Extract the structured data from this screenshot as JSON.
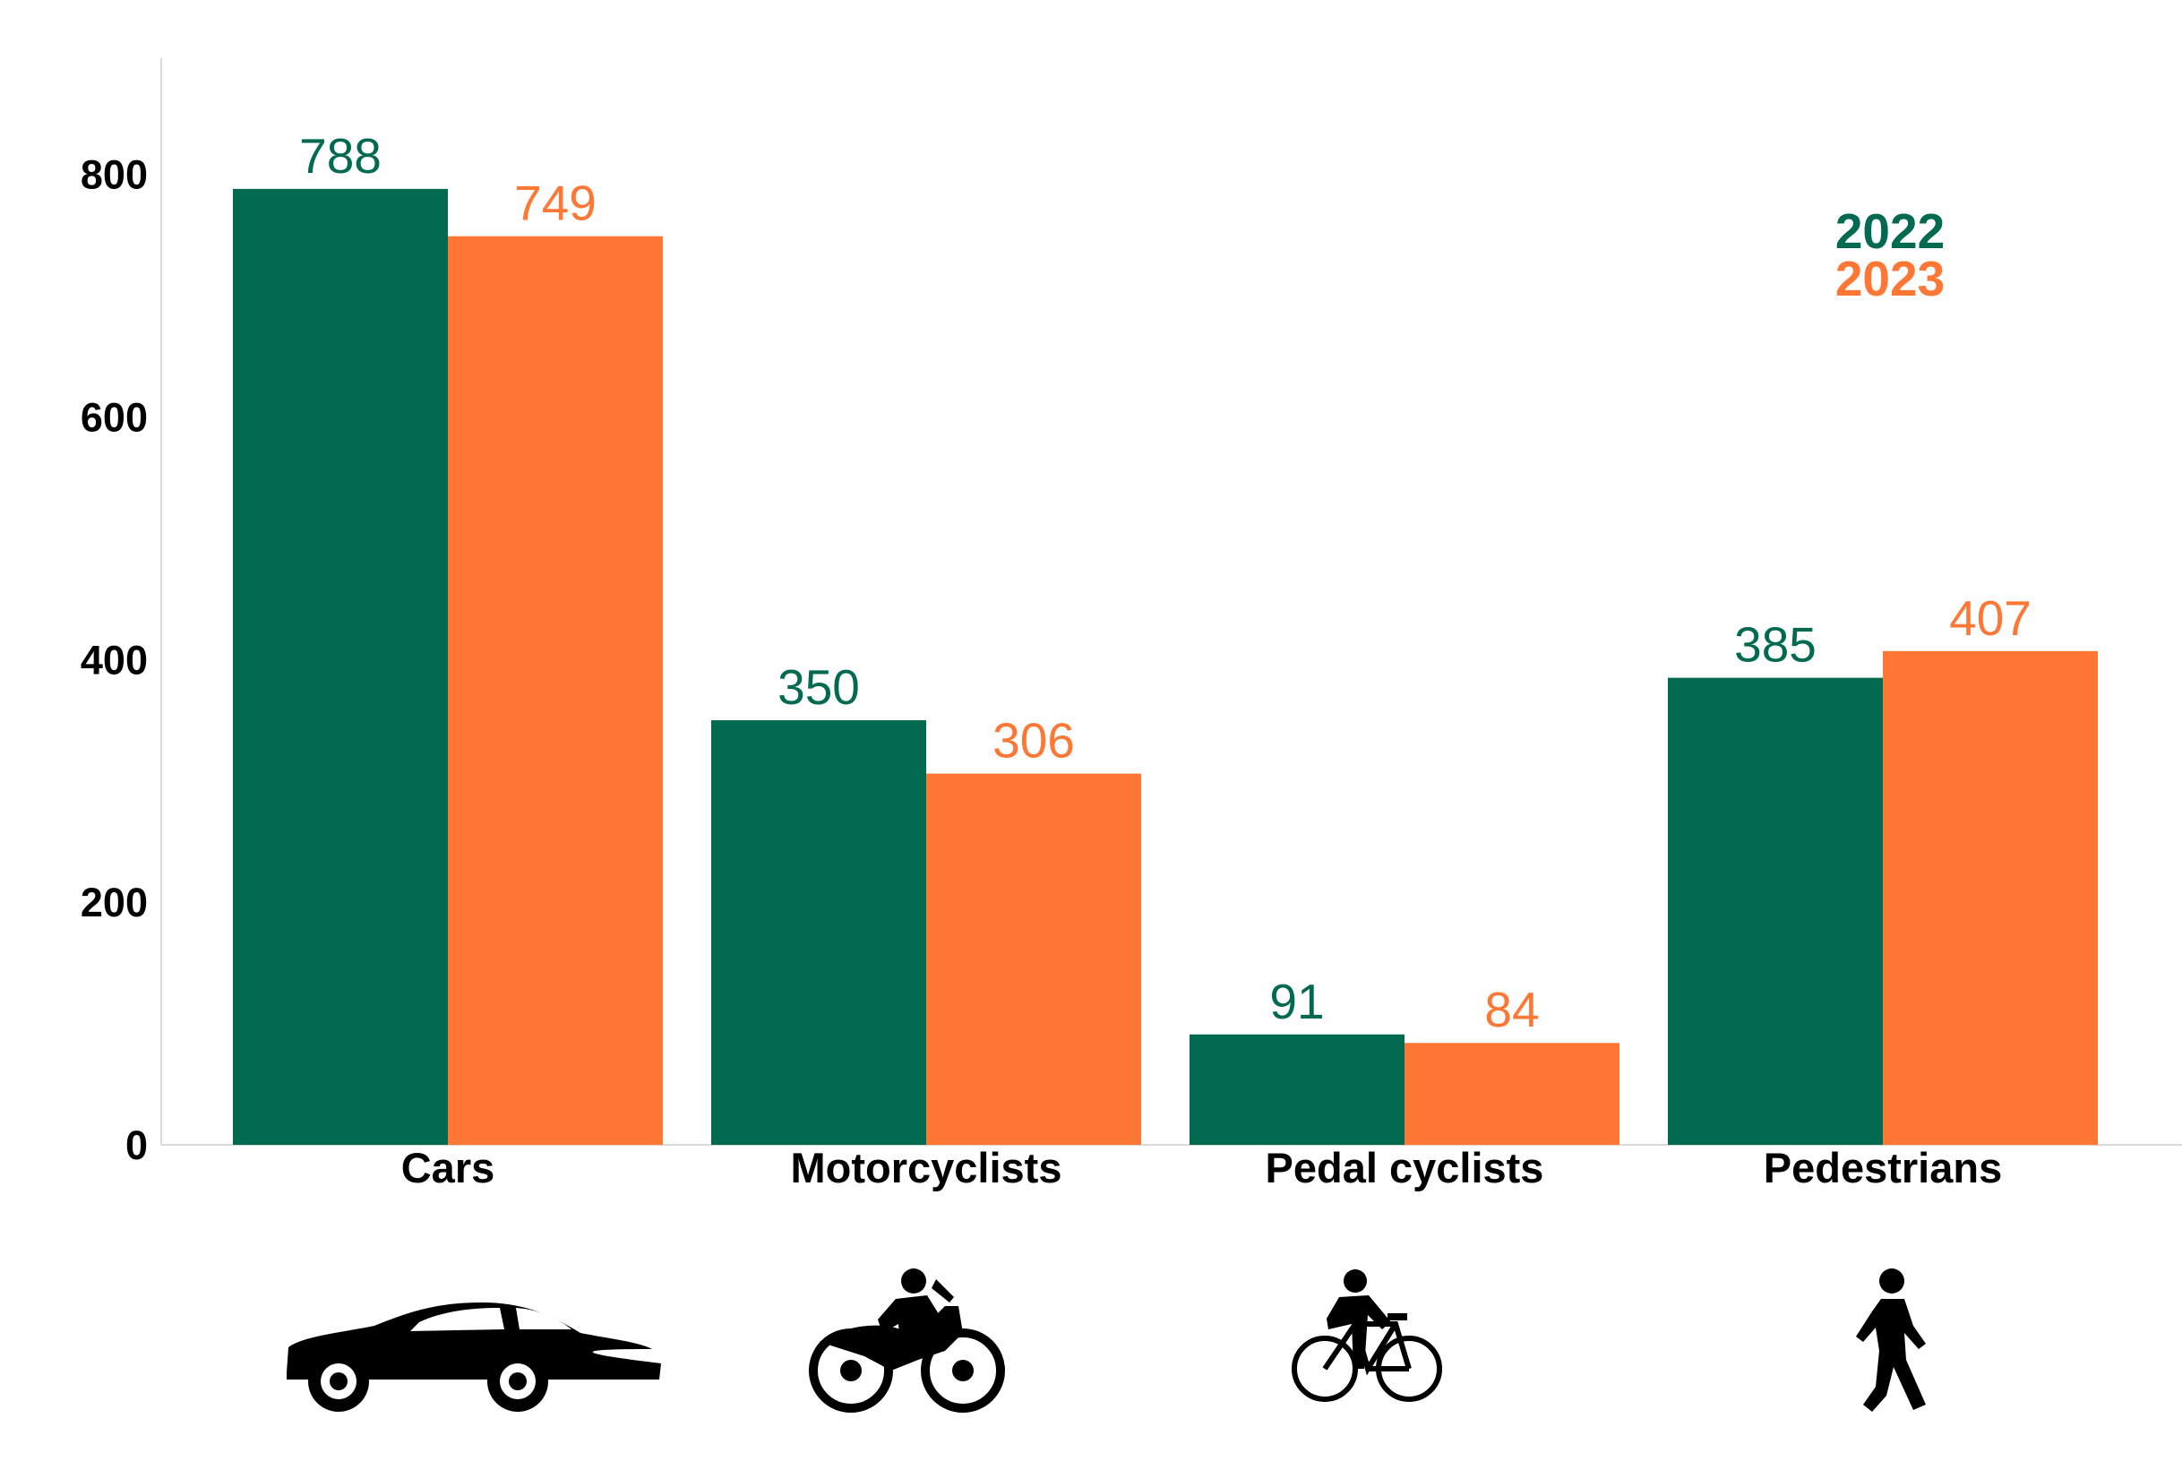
{
  "chart_data": {
    "type": "bar",
    "categories": [
      "Cars",
      "Motorcyclists",
      "Pedal cyclists",
      "Pedestrians"
    ],
    "series": [
      {
        "name": "2022",
        "values": [
          788,
          350,
          91,
          385
        ],
        "color": "#036A52"
      },
      {
        "name": "2023",
        "values": [
          749,
          306,
          84,
          407
        ],
        "color": "#FE7734"
      }
    ],
    "y_ticks": [
      "0",
      "200",
      "400",
      "600",
      "800"
    ],
    "ylim": [
      0,
      890
    ],
    "grid": false,
    "legend_position": "top-right",
    "category_icons": [
      "car-icon",
      "motorcycle-icon",
      "bicycle-icon",
      "pedestrian-icon"
    ]
  }
}
